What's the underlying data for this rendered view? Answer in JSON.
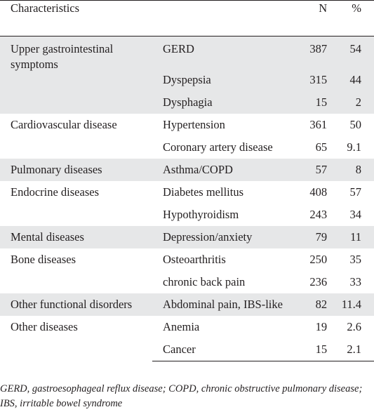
{
  "header": {
    "characteristics": "Characteristics",
    "n": "N",
    "pct": "%"
  },
  "rows": [
    {
      "group": "Upper gastrointestinal symptoms",
      "condition": "GERD",
      "n": "387",
      "pct": "54"
    },
    {
      "group": "",
      "condition": "Dyspepsia",
      "n": "315",
      "pct": "44"
    },
    {
      "group": "",
      "condition": "Dysphagia",
      "n": "15",
      "pct": "2"
    },
    {
      "group": "Cardiovascular disease",
      "condition": "Hypertension",
      "n": "361",
      "pct": "50"
    },
    {
      "group": "",
      "condition": "Coronary artery disease",
      "n": "65",
      "pct": "9.1"
    },
    {
      "group": "Pulmonary diseases",
      "condition": "Asthma/COPD",
      "n": "57",
      "pct": "8"
    },
    {
      "group": "Endocrine diseases",
      "condition": "Diabetes mellitus",
      "n": "408",
      "pct": "57"
    },
    {
      "group": "",
      "condition": "Hypothyroidism",
      "n": "243",
      "pct": "34"
    },
    {
      "group": "Mental diseases",
      "condition": "Depression/anxiety",
      "n": "79",
      "pct": "11"
    },
    {
      "group": "Bone diseases",
      "condition": "Osteoarthritis",
      "n": "250",
      "pct": "35"
    },
    {
      "group": "",
      "condition": "chronic back pain",
      "n": "236",
      "pct": "33"
    },
    {
      "group": "Other functional disorders",
      "condition": "Abdominal pain, IBS-like",
      "n": "82",
      "pct": "11.4"
    },
    {
      "group": "Other diseases",
      "condition": "Anemia",
      "n": "19",
      "pct": "2.6"
    },
    {
      "group": "",
      "condition": "Cancer",
      "n": "15",
      "pct": "2.1"
    }
  ],
  "footnote": "GERD, gastroesophageal reflux disease; COPD, chronic obstructive pulmonary disease; IBS, irritable bowel syndrome",
  "colors": {
    "shade": "#e6e7e8",
    "text": "#231f20"
  }
}
